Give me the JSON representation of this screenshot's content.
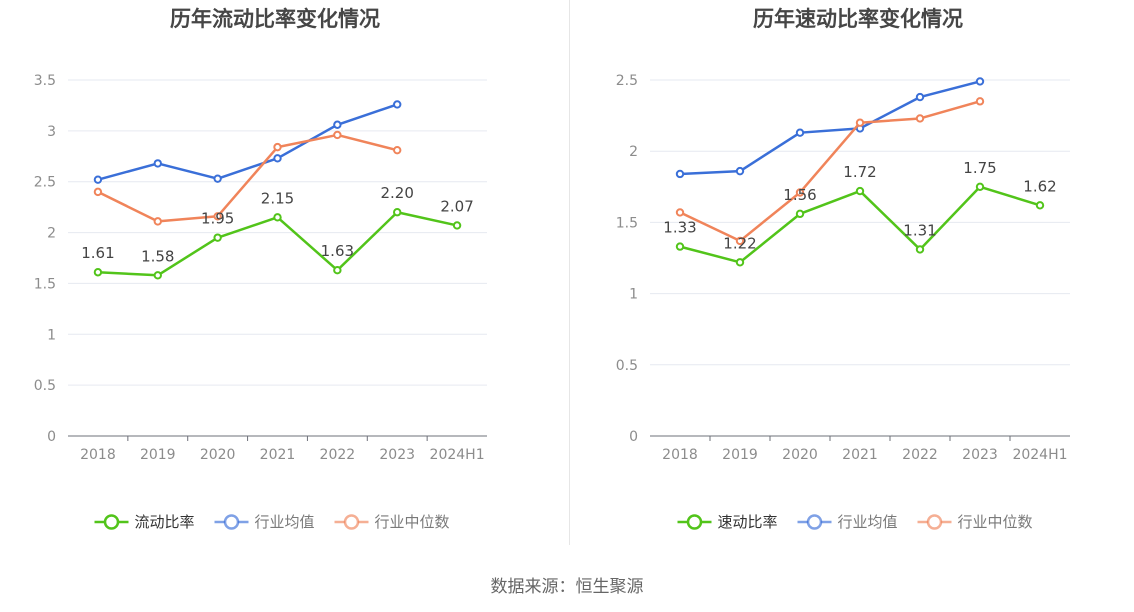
{
  "source": "数据来源：恒生聚源",
  "colors": {
    "primary": "#52c41a",
    "industry_avg": "#3a6fd8",
    "industry_median": "#f0845a",
    "grid": "#e6e9f0",
    "axis": "#6e7079",
    "tick_text": "#8c8c8c",
    "title_text": "#464646"
  },
  "chart_data": [
    {
      "type": "line",
      "title": "历年流动比率变化情况",
      "categories": [
        "2018",
        "2019",
        "2020",
        "2021",
        "2022",
        "2023",
        "2024H1"
      ],
      "ylim": [
        0,
        3.5
      ],
      "yticks": [
        "0",
        "0.5",
        "1",
        "1.5",
        "2",
        "2.5",
        "3",
        "3.5"
      ],
      "grid": true,
      "legend_position": "bottom",
      "series": [
        {
          "name": "流动比率",
          "color_key": "primary",
          "values": [
            1.61,
            1.58,
            1.95,
            2.15,
            1.63,
            2.2,
            2.07
          ],
          "labels": [
            "1.61",
            "1.58",
            "1.95",
            "2.15",
            "1.63",
            "2.20",
            "2.07"
          ]
        },
        {
          "name": "行业均值",
          "color_key": "industry_avg",
          "values": [
            2.52,
            2.68,
            2.53,
            2.73,
            3.06,
            3.26,
            null
          ]
        },
        {
          "name": "行业中位数",
          "color_key": "industry_median",
          "values": [
            2.4,
            2.11,
            2.16,
            2.84,
            2.96,
            2.81,
            null
          ]
        }
      ]
    },
    {
      "type": "line",
      "title": "历年速动比率变化情况",
      "categories": [
        "2018",
        "2019",
        "2020",
        "2021",
        "2022",
        "2023",
        "2024H1"
      ],
      "ylim": [
        0,
        2.5
      ],
      "yticks": [
        "0",
        "0.5",
        "1",
        "1.5",
        "2",
        "2.5"
      ],
      "grid": true,
      "legend_position": "bottom",
      "series": [
        {
          "name": "速动比率",
          "color_key": "primary",
          "values": [
            1.33,
            1.22,
            1.56,
            1.72,
            1.31,
            1.75,
            1.62
          ],
          "labels": [
            "1.33",
            "1.22",
            "1.56",
            "1.72",
            "1.31",
            "1.75",
            "1.62"
          ]
        },
        {
          "name": "行业均值",
          "color_key": "industry_avg",
          "values": [
            1.84,
            1.86,
            2.13,
            2.16,
            2.38,
            2.49,
            null
          ]
        },
        {
          "name": "行业中位数",
          "color_key": "industry_median",
          "values": [
            1.57,
            1.37,
            1.71,
            2.2,
            2.23,
            2.35,
            null
          ]
        }
      ]
    }
  ]
}
